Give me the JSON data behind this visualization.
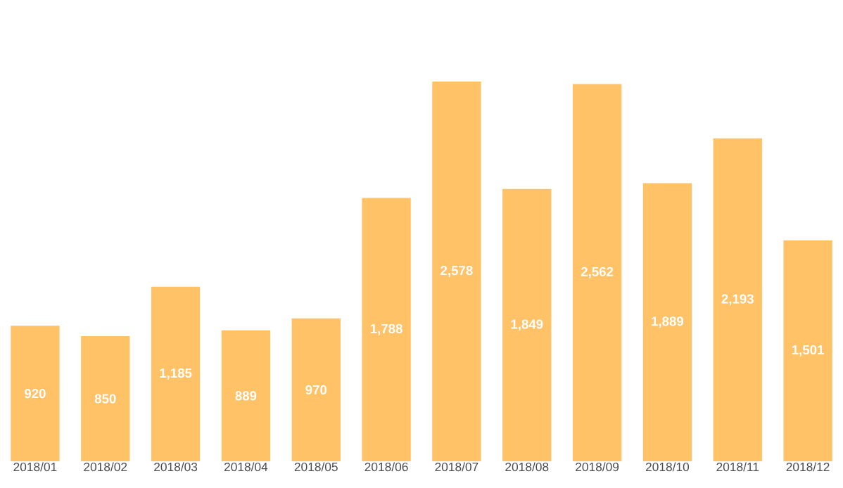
{
  "chart_data": {
    "type": "bar",
    "categories": [
      "2018/01",
      "2018/02",
      "2018/03",
      "2018/04",
      "2018/05",
      "2018/06",
      "2018/07",
      "2018/08",
      "2018/09",
      "2018/10",
      "2018/11",
      "2018/12"
    ],
    "values": [
      920,
      850,
      1185,
      889,
      970,
      1788,
      2578,
      1849,
      2562,
      1889,
      2193,
      1501
    ],
    "value_labels": [
      "920",
      "850",
      "1,185",
      "889",
      "970",
      "1,788",
      "2,578",
      "1,849",
      "2,562",
      "1,889",
      "2,193",
      "1,501"
    ],
    "color": "#ffc266",
    "tick_labels": "x"
  }
}
